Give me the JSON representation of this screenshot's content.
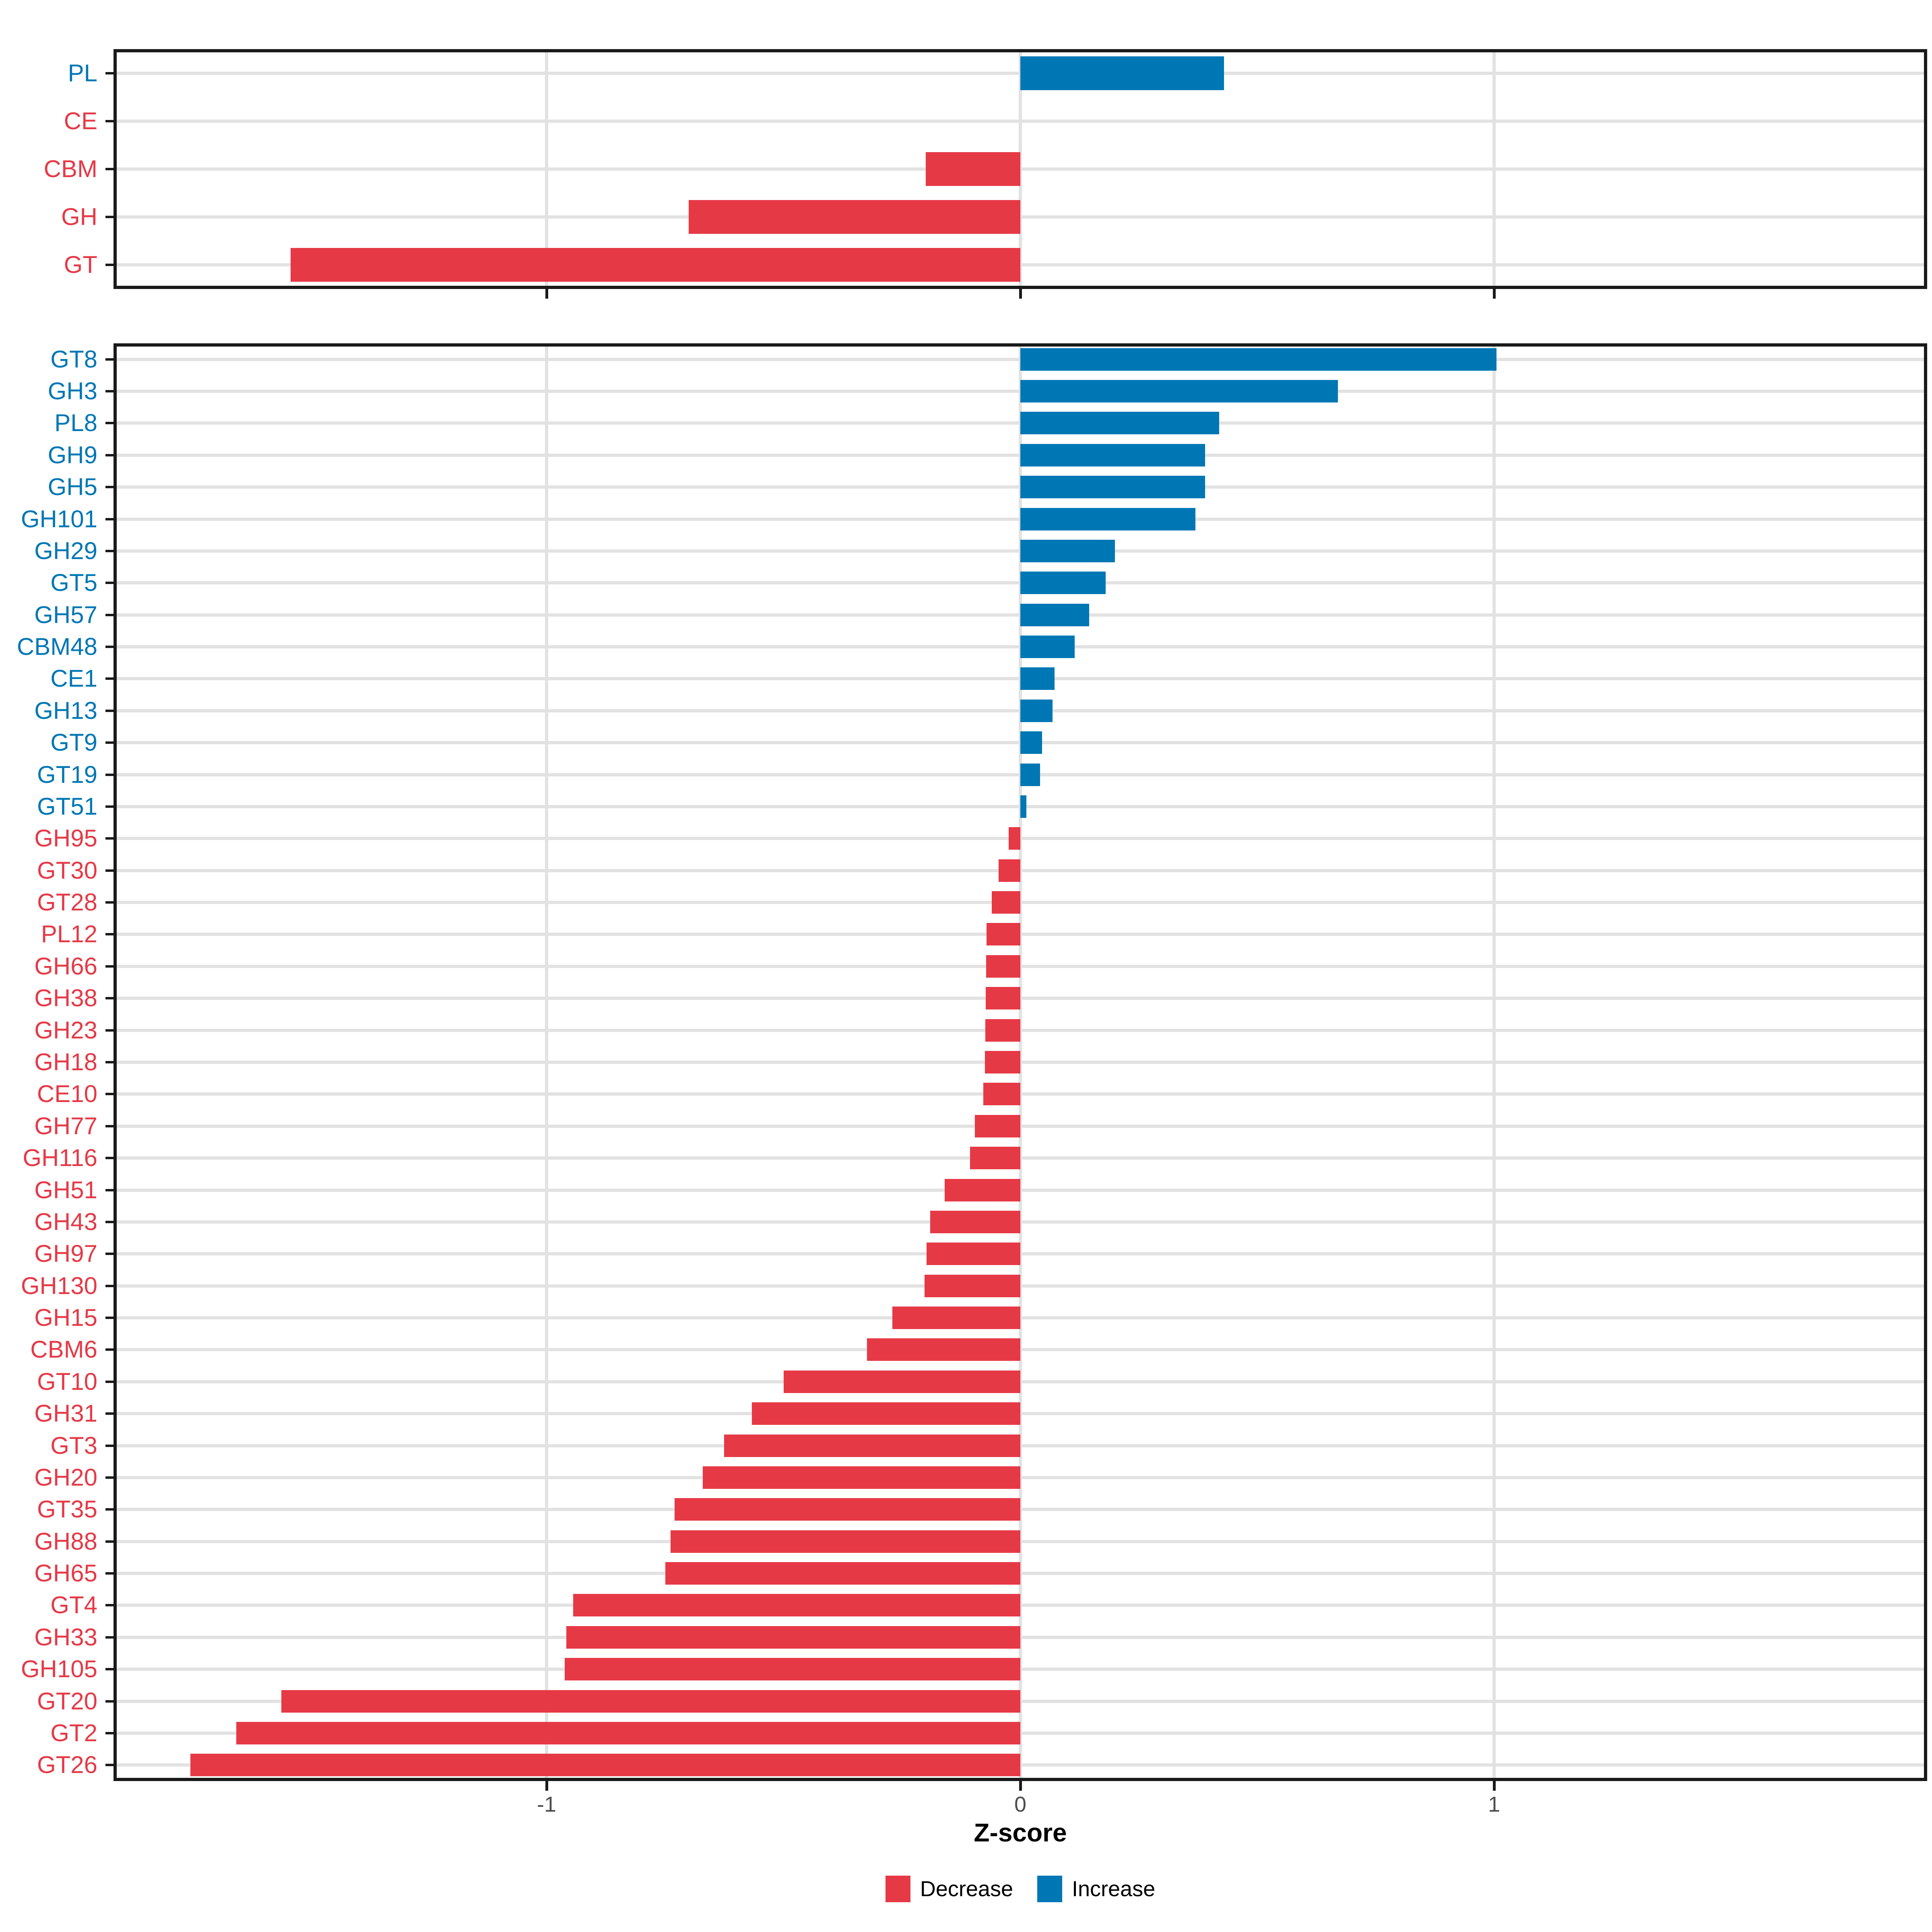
{
  "axis": {
    "xlabel": "Z-score",
    "tick_labels": [
      "-1",
      "0",
      "1"
    ],
    "tick_values": [
      -1,
      0,
      1
    ]
  },
  "legend": [
    {
      "label": "Decrease",
      "color": "#E63946"
    },
    {
      "label": "Increase",
      "color": "#0077B5"
    }
  ],
  "colors": {
    "decrease": "#E63946",
    "increase": "#0077B5"
  },
  "chart_data": [
    {
      "id": "cazyme-class-summary",
      "type": "bar",
      "orientation": "horizontal",
      "xlabel": "Z-score",
      "xlim": [
        -1.92,
        1.92
      ],
      "x_ticks": [
        -1,
        0,
        1
      ],
      "grid": true,
      "legend_position": "bottom",
      "categories": [
        "PL",
        "CE",
        "CBM",
        "GH",
        "GT"
      ],
      "values": [
        0.43,
        0,
        -0.2,
        -0.7,
        -1.54
      ]
    },
    {
      "id": "cazyme-family-detail",
      "type": "bar",
      "orientation": "horizontal",
      "xlabel": "Z-score",
      "xlim": [
        -1.92,
        1.92
      ],
      "x_ticks": [
        -1,
        0,
        1
      ],
      "grid": true,
      "legend_position": "bottom",
      "categories": [
        "GT8",
        "GH3",
        "PL8",
        "GH9",
        "GH5",
        "GH101",
        "GH29",
        "GT5",
        "GH57",
        "CBM48",
        "CE1",
        "GH13",
        "GT9",
        "GT19",
        "GT51",
        "GH95",
        "GT30",
        "GT28",
        "PL12",
        "GH66",
        "GH38",
        "GH23",
        "GH18",
        "CE10",
        "GH77",
        "GH116",
        "GH51",
        "GH43",
        "GH97",
        "GH130",
        "GH15",
        "CBM6",
        "GT10",
        "GH31",
        "GT3",
        "GH20",
        "GT35",
        "GH88",
        "GH65",
        "GT4",
        "GH33",
        "GH105",
        "GT20",
        "GT2",
        "GT26"
      ],
      "values": [
        1.005,
        0.67,
        0.42,
        0.39,
        0.39,
        0.37,
        0.2,
        0.18,
        0.145,
        0.115,
        0.072,
        0.068,
        0.046,
        0.042,
        0.013,
        -0.025,
        -0.046,
        -0.06,
        -0.071,
        -0.072,
        -0.073,
        -0.074,
        -0.075,
        -0.078,
        -0.096,
        -0.106,
        -0.16,
        -0.19,
        -0.198,
        -0.202,
        -0.27,
        -0.324,
        -0.5,
        -0.567,
        -0.625,
        -0.67,
        -0.73,
        -0.738,
        -0.749,
        -0.944,
        -0.958,
        -0.962,
        -1.56,
        -1.655,
        -1.752
      ]
    }
  ]
}
